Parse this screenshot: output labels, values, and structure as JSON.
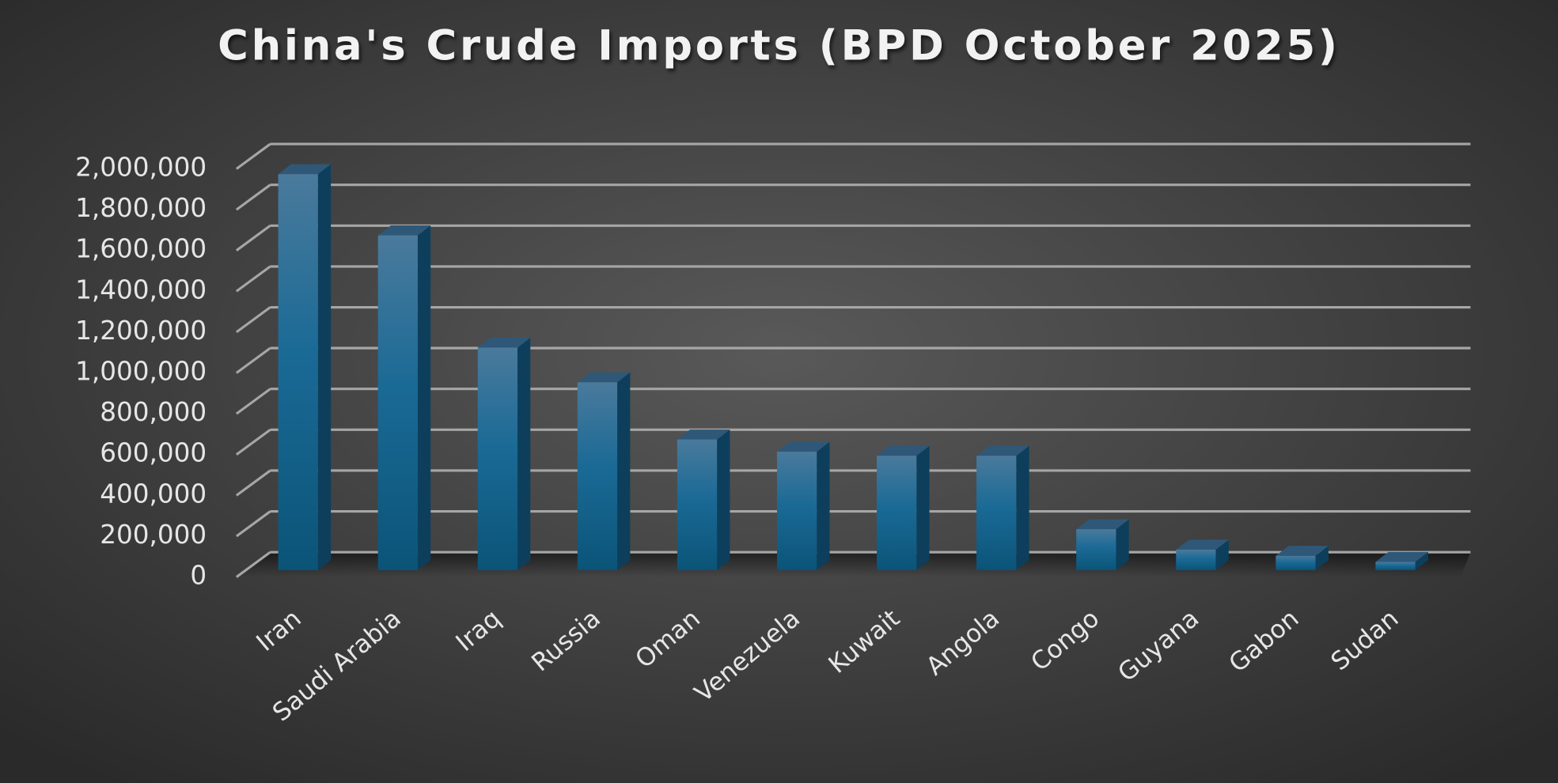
{
  "chart_data": {
    "type": "bar",
    "title": "China's Crude Imports (BPD October 2025)",
    "categories": [
      "Iran",
      "Saudi Arabia",
      "Iraq",
      "Russia",
      "Oman",
      "Venezuela",
      "Kuwait",
      "Angola",
      "Congo",
      "Guyana",
      "Gabon",
      "Sudan"
    ],
    "values": [
      1940000,
      1640000,
      1090000,
      920000,
      640000,
      580000,
      560000,
      560000,
      200000,
      100000,
      70000,
      40000
    ],
    "color": "#1a6a96",
    "ylim": [
      0,
      2000000
    ],
    "yticks": [
      0,
      {
        "value": 200000,
        "label": "200,000"
      },
      {
        "value": 400000,
        "label": "400,000"
      },
      {
        "value": 600000,
        "label": "600,000"
      },
      {
        "value": 800000,
        "label": "800,000"
      },
      {
        "value": 1000000,
        "label": "1,000,000"
      },
      {
        "value": 1200000,
        "label": "1,200,000"
      },
      {
        "value": 1400000,
        "label": "1,400,000"
      },
      {
        "value": 1600000,
        "label": "1,600,000"
      },
      {
        "value": 1800000,
        "label": "1,800,000"
      },
      {
        "value": 2000000,
        "label": "2,000,000"
      }
    ],
    "grid": true
  }
}
